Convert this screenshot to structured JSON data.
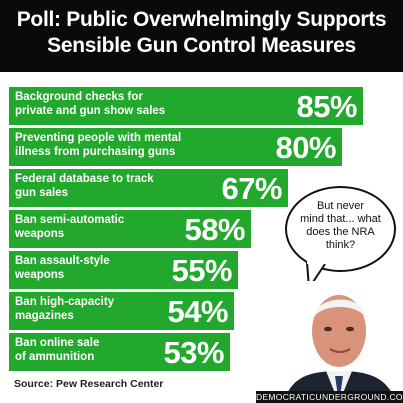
{
  "title_line1": "Poll: Public Overwhelmingly Supports",
  "title_line2": "Sensible Gun Control Measures",
  "source": "Source: Pew Research Center",
  "speech_bubble": "But never\nmind that... what\ndoes the NRA\nthink?",
  "watermark": "DEMOCRATICUNDERGROUND.COM",
  "colors": {
    "bar": "#22a82c",
    "header": "#0a0a0a"
  },
  "chart_data": {
    "type": "bar",
    "orientation": "horizontal",
    "title": "Poll: Public Overwhelmingly Supports Sensible Gun Control Measures",
    "categories": [
      "Background checks for\nprivate and gun show sales",
      "Preventing people with mental\nillness from purchasing guns",
      "Federal database to track\ngun sales",
      "Ban semi-automatic\nweapons",
      "Ban assault-style\nweapons",
      "Ban high-capacity\nmagazines",
      "Ban online sale\nof ammunition"
    ],
    "values": [
      85,
      80,
      67,
      58,
      55,
      54,
      53
    ],
    "value_labels": [
      "85%",
      "80%",
      "67%",
      "58%",
      "55%",
      "54%",
      "53%"
    ],
    "unit": "%"
  }
}
